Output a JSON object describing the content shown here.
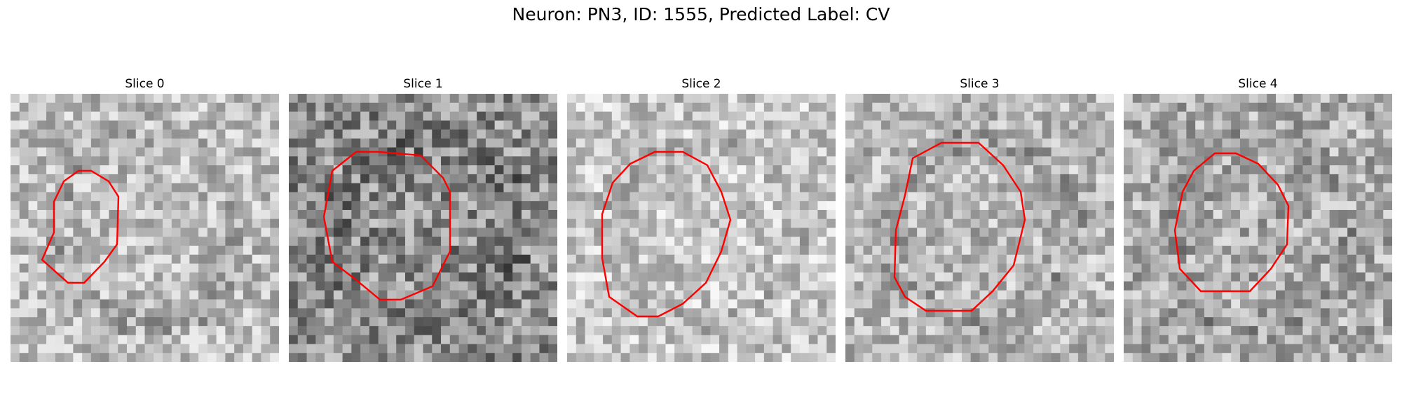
{
  "figure": {
    "suptitle": "Neuron: PN3, ID: 1555, Predicted Label: CV"
  },
  "panels": [
    {
      "title": "Slice 0",
      "tone": 0.74,
      "contrast": 0.2
    },
    {
      "title": "Slice 1",
      "tone": 0.55,
      "contrast": 0.26
    },
    {
      "title": "Slice 2",
      "tone": 0.78,
      "contrast": 0.2
    },
    {
      "title": "Slice 3",
      "tone": 0.72,
      "contrast": 0.2
    },
    {
      "title": "Slice 4",
      "tone": 0.68,
      "contrast": 0.22
    }
  ],
  "colors": {
    "contour": "#ff0000",
    "background": "#ffffff"
  }
}
